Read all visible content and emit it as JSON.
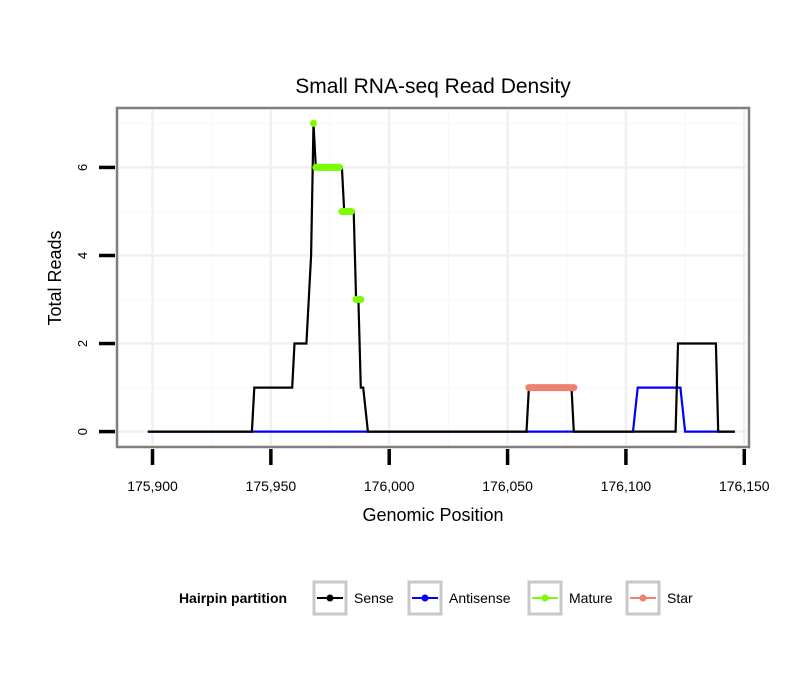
{
  "chart_data": {
    "type": "line",
    "title": "Small RNA-seq Read Density",
    "xlabel": "Genomic Position",
    "ylabel": "Total Reads",
    "xlim": [
      175885,
      176152
    ],
    "ylim": [
      -0.35,
      7.35
    ],
    "x_ticks": [
      175900,
      175950,
      176000,
      176050,
      176100,
      176150
    ],
    "x_tick_labels": [
      "175,900",
      "175,950",
      "176,000",
      "176,050",
      "176,100",
      "176,150"
    ],
    "y_ticks": [
      0,
      2,
      4,
      6
    ],
    "y_tick_labels": [
      "0",
      "2",
      "4",
      "6"
    ],
    "grid": true,
    "legend": {
      "title": "Hairpin partition",
      "position": "bottom",
      "entries": [
        "Sense",
        "Antisense",
        "Mature",
        "Star"
      ]
    },
    "series": [
      {
        "name": "Sense",
        "color": "#000000",
        "x": [
          175898,
          175942,
          175943,
          175959,
          175960,
          175965,
          175967,
          175968,
          175969,
          175977,
          175980,
          175981,
          175984,
          175985,
          175986,
          175987,
          175988,
          175989,
          175991,
          175992,
          176058,
          176059,
          176077,
          176078,
          176104,
          176105,
          176120,
          176121,
          176122,
          176138,
          176139,
          176146
        ],
        "values": [
          0,
          0,
          1,
          1,
          2,
          2,
          4,
          7,
          6,
          6,
          6,
          5,
          5,
          5,
          3,
          3,
          1,
          1,
          0,
          0,
          0,
          1,
          1,
          0,
          0,
          0,
          0,
          0,
          2,
          2,
          0,
          0
        ]
      },
      {
        "name": "Antisense",
        "color": "#0000ff",
        "x": [
          175898,
          176103,
          176105,
          176123,
          176125,
          176146
        ],
        "values": [
          0,
          0,
          1,
          1,
          0,
          0
        ]
      },
      {
        "name": "Mature",
        "color": "#7cfc00",
        "segments": [
          {
            "x": [
              175968,
              175968
            ],
            "values": [
              7,
              7
            ]
          },
          {
            "x": [
              175969,
              175979
            ],
            "values": [
              6,
              6
            ]
          },
          {
            "x": [
              175980,
              175984
            ],
            "values": [
              5,
              5
            ]
          },
          {
            "x": [
              175986,
              175988
            ],
            "values": [
              3,
              3
            ]
          }
        ]
      },
      {
        "name": "Star",
        "color": "#f08070",
        "segments": [
          {
            "x": [
              176059,
              176078
            ],
            "values": [
              1,
              1
            ]
          }
        ]
      }
    ]
  }
}
